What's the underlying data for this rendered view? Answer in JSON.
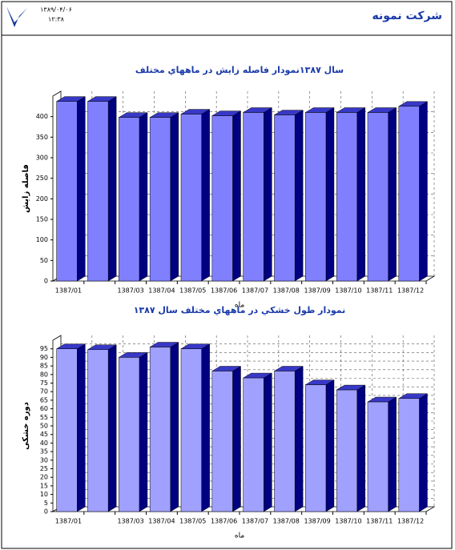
{
  "header": {
    "company": "شرکت نمونه",
    "date": "۱۳۸۹/۰۴/۰۶",
    "time": "۱۲:۳۸"
  },
  "chart_data": [
    {
      "type": "bar3d",
      "title": "سال ۱۳۸۷نمودار فاصله زايش در ماههاي مختلف",
      "y_label": "فاصله زايش",
      "x_label": "ماه",
      "categories": [
        "1387/01",
        null,
        "1387/03",
        "1387/04",
        "1387/05",
        "1387/06",
        "1387/07",
        "1387/08",
        "1387/09",
        "1387/10",
        "1387/11",
        "1387/12"
      ],
      "values": [
        437,
        437,
        398,
        398,
        406,
        402,
        410,
        404,
        410,
        410,
        410,
        425
      ],
      "color": "#8080ff",
      "side_color": "#000080",
      "top_color": "#3838c8",
      "ylim": [
        0,
        450
      ],
      "yticks": [
        0,
        50,
        100,
        150,
        200,
        250,
        300,
        350,
        400
      ],
      "grid": true
    },
    {
      "type": "bar3d",
      "title": "نمودار طول خشکي در ماههاي مختلف   سال ۱۳۸۷",
      "y_label": "دوره خشکی",
      "x_label": "ماه",
      "categories": [
        "1387/01",
        null,
        "1387/03",
        "1387/04",
        "1387/05",
        "1387/06",
        "1387/07",
        "1387/08",
        "1387/09",
        "1387/10",
        "1387/11",
        "1387/12"
      ],
      "values": [
        95,
        94.5,
        90,
        96,
        95,
        82,
        78,
        82,
        74,
        71,
        64,
        66
      ],
      "color": "#a0a0ff",
      "side_color": "#000080",
      "top_color": "#3838c8",
      "ylim": [
        0,
        100
      ],
      "yticks": [
        0,
        5,
        10,
        15,
        20,
        25,
        30,
        35,
        40,
        45,
        50,
        55,
        60,
        65,
        70,
        75,
        80,
        85,
        90,
        95
      ],
      "grid": true
    }
  ]
}
